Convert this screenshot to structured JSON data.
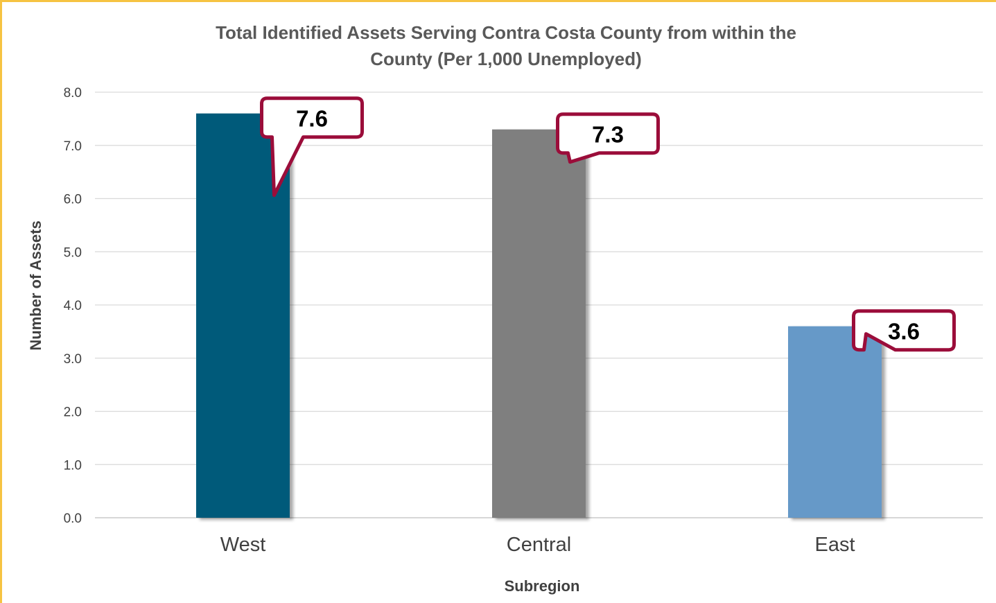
{
  "chart_data": {
    "type": "bar",
    "title": [
      "Total Identified Assets Serving Contra Costa County from within the",
      "County (Per 1,000 Unemployed)"
    ],
    "xlabel": "Subregion",
    "ylabel": "Number of Assets",
    "ylim": [
      0,
      8
    ],
    "yticks": [
      "0.0",
      "1.0",
      "2.0",
      "3.0",
      "4.0",
      "5.0",
      "6.0",
      "7.0",
      "8.0"
    ],
    "grid": true,
    "categories": [
      "West",
      "Central",
      "East"
    ],
    "values": [
      7.6,
      7.3,
      3.6
    ],
    "data_labels": [
      "7.6",
      "7.3",
      "3.6"
    ],
    "colors": [
      "#005a7a",
      "#7f7f7f",
      "#6699c8"
    ],
    "callout_border_color": "#9b0d3a",
    "frame_color": "#f6c342"
  }
}
